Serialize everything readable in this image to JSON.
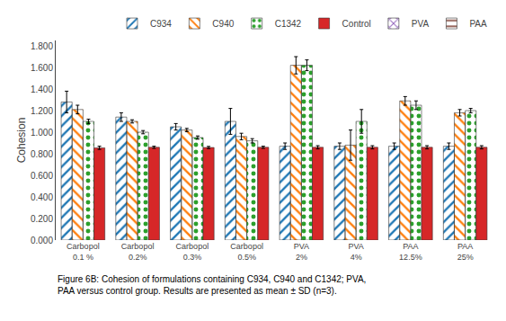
{
  "chart_data": {
    "type": "bar",
    "categories": [
      "Carbopol\n0.1 %",
      "Carbopol\n0.2%",
      "Carbopol\n0.3%",
      "Carbopol\n0.5%",
      "PVA\n2%",
      "PVA\n4%",
      "PAA\n12.5%",
      "PAA\n25%"
    ],
    "series": [
      {
        "name": "C934",
        "values": [
          1.28,
          1.14,
          1.05,
          1.1,
          0.87,
          0.87,
          0.87,
          0.87
        ],
        "errors": [
          0.1,
          0.04,
          0.03,
          0.12,
          0.03,
          0.03,
          0.03,
          0.03
        ]
      },
      {
        "name": "C940",
        "values": [
          1.21,
          1.1,
          1.02,
          0.96,
          1.62,
          0.88,
          1.29,
          1.18
        ],
        "errors": [
          0.04,
          0.015,
          0.015,
          0.03,
          0.08,
          0.14,
          0.04,
          0.03
        ]
      },
      {
        "name": "C1342",
        "values": [
          1.1,
          1.0,
          0.95,
          0.92,
          1.62,
          1.1,
          1.25,
          1.2
        ],
        "errors": [
          0.02,
          0.015,
          0.015,
          0.02,
          0.05,
          0.11,
          0.04,
          0.02
        ]
      },
      {
        "name": "Control",
        "values": [
          0.855,
          0.86,
          0.858,
          0.86,
          0.86,
          0.86,
          0.86,
          0.86
        ],
        "errors": [
          0.015,
          0.01,
          0.01,
          0.01,
          0.015,
          0.015,
          0.015,
          0.015
        ]
      },
      {
        "name": "PVA",
        "values": [
          null,
          null,
          null,
          null,
          null,
          null,
          null,
          null
        ]
      },
      {
        "name": "PAA",
        "values": [
          null,
          null,
          null,
          null,
          null,
          null,
          null,
          null
        ]
      }
    ],
    "ylabel": "Cohesion",
    "ylim": [
      0.0,
      1.85
    ],
    "yticks": [
      {
        "value": 0.0,
        "label": "0.000"
      },
      {
        "value": 0.2,
        "label": "0.200"
      },
      {
        "value": 0.4,
        "label": "0.400"
      },
      {
        "value": 0.6,
        "label": "0.600"
      },
      {
        "value": 0.8,
        "label": "0.800"
      },
      {
        "value": 1.0,
        "label": "1.000"
      },
      {
        "value": 1.2,
        "label": "1.200"
      },
      {
        "value": 1.4,
        "label": "1.400"
      },
      {
        "value": 1.6,
        "label": "1.600"
      },
      {
        "value": 1.8,
        "label": "1.800"
      }
    ],
    "grid": false,
    "legend": "top",
    "annotations": [
      {
        "text": "Figure 6B: Cohesion of formulations containing C934, C940 and C1342; PVA,\nPAA versus control group. Results are presented as mean ± SD (n=3)."
      }
    ]
  }
}
